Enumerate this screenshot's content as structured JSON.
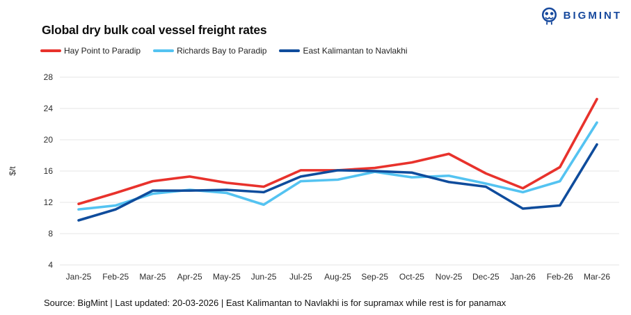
{
  "header": {
    "logo_text": "BIGMINT",
    "brand_color": "#17499d"
  },
  "chart_data": {
    "type": "line",
    "title": "Global dry bulk coal vessel freight rates",
    "ylabel": "$/t",
    "ylim": [
      4,
      28
    ],
    "yticks": [
      4,
      8,
      12,
      16,
      20,
      24,
      28
    ],
    "grid": "horizontal-only",
    "legend_position": "top-left",
    "categories": [
      "Jan-25",
      "Feb-25",
      "Mar-25",
      "Apr-25",
      "May-25",
      "Jun-25",
      "Jul-25",
      "Aug-25",
      "Sep-25",
      "Oct-25",
      "Nov-25",
      "Dec-25",
      "Jan-26",
      "Feb-26",
      "Mar-26"
    ],
    "series": [
      {
        "name": "Hay Point to Paradip",
        "color": "#e8322c",
        "values": [
          11.8,
          13.2,
          14.7,
          15.3,
          14.5,
          14.0,
          16.1,
          16.1,
          16.4,
          17.1,
          18.2,
          15.7,
          13.8,
          16.5,
          25.2
        ]
      },
      {
        "name": "Richards Bay to Paradip",
        "color": "#54c3f1",
        "values": [
          11.1,
          11.6,
          13.1,
          13.6,
          13.2,
          11.7,
          14.7,
          14.9,
          15.9,
          15.2,
          15.4,
          14.4,
          13.3,
          14.7,
          22.2
        ]
      },
      {
        "name": "East Kalimantan to Navlakhi",
        "color": "#0f4c9c",
        "values": [
          9.7,
          11.1,
          13.5,
          13.5,
          13.6,
          13.3,
          15.3,
          16.1,
          16.0,
          15.8,
          14.6,
          14.0,
          11.2,
          11.6,
          19.4
        ]
      }
    ]
  },
  "footer": {
    "source_line": "Source: BigMint | Last updated: 20-03-2026 | East Kalimantan to Navlakhi is for supramax while rest is for panamax"
  }
}
